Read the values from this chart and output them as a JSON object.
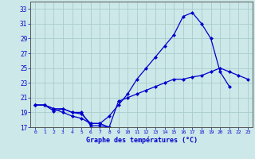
{
  "bg_color": "#cce8e8",
  "grid_color": "#aacccc",
  "line_color": "#0000cc",
  "xlim": [
    -0.5,
    23.5
  ],
  "ylim": [
    17,
    34
  ],
  "yticks": [
    17,
    19,
    21,
    23,
    25,
    27,
    29,
    31,
    33
  ],
  "xticks": [
    0,
    1,
    2,
    3,
    4,
    5,
    6,
    7,
    8,
    9,
    10,
    11,
    12,
    13,
    14,
    15,
    16,
    17,
    18,
    19,
    20,
    21,
    22,
    23
  ],
  "xlabel": "Graphe des températures (°C)",
  "line1_x": [
    0,
    1,
    2,
    3,
    4,
    5,
    6,
    7,
    8,
    9,
    10,
    11,
    12,
    13,
    14,
    15,
    16,
    17,
    18,
    19,
    20,
    21
  ],
  "line1_y": [
    20.0,
    20.0,
    19.5,
    19.0,
    18.5,
    18.2,
    17.5,
    17.5,
    18.5,
    20.0,
    21.5,
    23.5,
    25.0,
    26.5,
    28.0,
    29.5,
    32.0,
    32.5,
    31.0,
    29.0,
    24.5,
    22.5
  ],
  "line2_x": [
    0,
    1,
    2,
    3,
    4,
    5,
    6,
    7,
    8
  ],
  "line2_y": [
    20.0,
    20.0,
    19.2,
    19.5,
    19.0,
    19.0,
    17.2,
    17.2,
    17.0
  ],
  "line3_x": [
    0,
    1,
    2,
    3,
    4,
    5,
    6,
    7,
    8,
    9,
    10,
    11,
    12,
    13,
    14,
    15,
    16,
    17,
    18,
    19,
    20,
    21,
    22,
    23
  ],
  "line3_y": [
    20.0,
    20.0,
    19.5,
    19.5,
    19.0,
    18.8,
    17.5,
    17.5,
    17.0,
    20.5,
    21.0,
    21.5,
    22.0,
    22.5,
    23.0,
    23.5,
    23.5,
    23.8,
    24.0,
    24.5,
    25.0,
    24.5,
    24.0,
    23.5
  ]
}
